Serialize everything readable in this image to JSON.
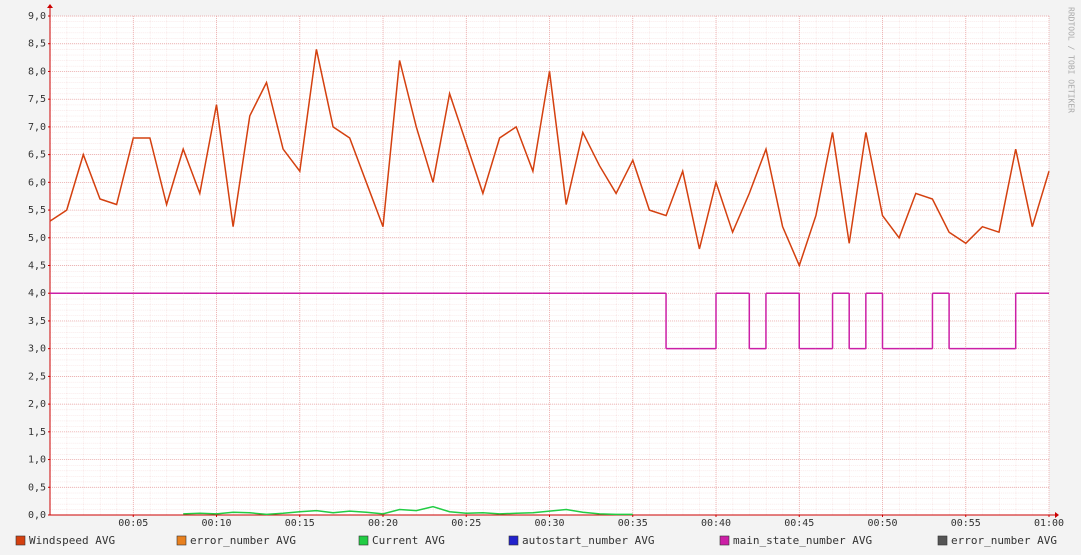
{
  "chart_data": {
    "type": "line",
    "watermark": "RRDTOOL / TOBI OETIKER",
    "x": [
      0,
      1,
      2,
      3,
      4,
      5,
      6,
      7,
      8,
      9,
      10,
      11,
      12,
      13,
      14,
      15,
      16,
      17,
      18,
      19,
      20,
      21,
      22,
      23,
      24,
      25,
      26,
      27,
      28,
      29,
      30,
      31,
      32,
      33,
      34,
      35,
      36,
      37,
      38,
      39,
      40,
      41,
      42,
      43,
      44,
      45,
      46,
      47,
      48,
      49,
      50,
      51,
      52,
      53,
      54,
      55,
      56,
      57,
      58,
      59,
      60
    ],
    "xlim": [
      0,
      60
    ],
    "xticks": [
      {
        "value": 5,
        "label": "00:05"
      },
      {
        "value": 10,
        "label": "00:10"
      },
      {
        "value": 15,
        "label": "00:15"
      },
      {
        "value": 20,
        "label": "00:20"
      },
      {
        "value": 25,
        "label": "00:25"
      },
      {
        "value": 30,
        "label": "00:30"
      },
      {
        "value": 35,
        "label": "00:35"
      },
      {
        "value": 40,
        "label": "00:40"
      },
      {
        "value": 45,
        "label": "00:45"
      },
      {
        "value": 50,
        "label": "00:50"
      },
      {
        "value": 55,
        "label": "00:55"
      },
      {
        "value": 60,
        "label": "01:00"
      }
    ],
    "ylim": [
      0,
      9
    ],
    "yticks": [
      {
        "value": 0,
        "label": "0,0"
      },
      {
        "value": 0.5,
        "label": "0,5"
      },
      {
        "value": 1,
        "label": "1,0"
      },
      {
        "value": 1.5,
        "label": "1,5"
      },
      {
        "value": 2,
        "label": "2,0"
      },
      {
        "value": 2.5,
        "label": "2,5"
      },
      {
        "value": 3,
        "label": "3,0"
      },
      {
        "value": 3.5,
        "label": "3,5"
      },
      {
        "value": 4,
        "label": "4,0"
      },
      {
        "value": 4.5,
        "label": "4,5"
      },
      {
        "value": 5,
        "label": "5,0"
      },
      {
        "value": 5.5,
        "label": "5,5"
      },
      {
        "value": 6,
        "label": "6,0"
      },
      {
        "value": 6.5,
        "label": "6,5"
      },
      {
        "value": 7,
        "label": "7,0"
      },
      {
        "value": 7.5,
        "label": "7,5"
      },
      {
        "value": 8,
        "label": "8,0"
      },
      {
        "value": 8.5,
        "label": "8,5"
      },
      {
        "value": 9,
        "label": "9,0"
      }
    ],
    "grid": true,
    "legend": "bottom",
    "series": [
      {
        "name": "Windspeed AVG",
        "color": "#d4400f",
        "values": [
          5.3,
          5.5,
          6.5,
          5.7,
          5.6,
          6.8,
          6.8,
          5.6,
          6.6,
          5.8,
          7.4,
          5.2,
          7.2,
          7.8,
          6.6,
          6.2,
          8.4,
          7.0,
          6.8,
          6.0,
          5.2,
          8.2,
          7.0,
          6.0,
          7.6,
          6.7,
          5.8,
          6.8,
          7.0,
          6.2,
          8.0,
          5.6,
          6.9,
          6.3,
          5.8,
          6.4,
          5.5,
          5.4,
          6.2,
          4.8,
          6.0,
          5.1,
          5.8,
          6.6,
          5.2,
          4.5,
          5.4,
          6.9,
          4.9,
          6.9,
          5.4,
          5.0,
          5.8,
          5.7,
          5.1,
          4.9,
          5.2,
          5.1,
          6.6,
          5.2,
          6.2
        ]
      },
      {
        "name": "error_number AVG",
        "color": "#e8801e",
        "values": [
          null,
          null,
          null,
          null,
          null,
          null,
          null,
          null,
          null,
          null,
          null,
          null,
          null,
          null,
          null,
          null,
          null,
          null,
          null,
          null,
          null,
          null,
          null,
          null,
          null,
          null,
          null,
          null,
          null,
          null,
          null,
          null,
          null,
          null,
          null,
          null,
          null,
          null,
          null,
          null,
          null,
          null,
          null,
          null,
          null,
          null,
          null,
          null,
          null,
          null,
          null,
          null,
          null,
          null,
          null,
          null,
          null,
          null,
          null,
          null,
          null
        ]
      },
      {
        "name": "Current AVG",
        "color": "#22cc44",
        "values": [
          null,
          null,
          null,
          null,
          null,
          null,
          null,
          null,
          0.02,
          0.03,
          0.02,
          0.05,
          0.04,
          0.01,
          0.03,
          0.06,
          0.08,
          0.04,
          0.07,
          0.05,
          0.02,
          0.1,
          0.08,
          0.15,
          0.06,
          0.03,
          0.04,
          0.02,
          0.03,
          0.04,
          0.07,
          0.1,
          0.05,
          0.02,
          0.01,
          0.01,
          null,
          null,
          null,
          null,
          null,
          null,
          null,
          null,
          null,
          null,
          null,
          null,
          null,
          null,
          null,
          null,
          null,
          null,
          null,
          null,
          null,
          null,
          null,
          null,
          null
        ]
      },
      {
        "name": "autostart_number AVG",
        "color": "#2222cc",
        "values": [
          null,
          null,
          null,
          null,
          null,
          null,
          null,
          null,
          null,
          null,
          null,
          null,
          null,
          null,
          null,
          null,
          null,
          null,
          null,
          null,
          null,
          null,
          null,
          null,
          null,
          null,
          null,
          null,
          null,
          null,
          null,
          null,
          null,
          null,
          null,
          null,
          null,
          null,
          null,
          null,
          null,
          null,
          null,
          null,
          null,
          null,
          null,
          null,
          null,
          null,
          null,
          null,
          null,
          null,
          null,
          null,
          null,
          null,
          null,
          null,
          null
        ]
      },
      {
        "name": "main_state_number AVG",
        "color": "#cc1fa6",
        "step": true,
        "values": [
          4,
          4,
          4,
          4,
          4,
          4,
          4,
          4,
          4,
          4,
          4,
          4,
          4,
          4,
          4,
          4,
          4,
          4,
          4,
          4,
          4,
          4,
          4,
          4,
          4,
          4,
          4,
          4,
          4,
          4,
          4,
          4,
          4,
          4,
          4,
          4,
          4,
          3,
          3,
          3,
          4,
          4,
          3,
          4,
          4,
          3,
          3,
          4,
          3,
          4,
          3,
          3,
          3,
          4,
          3,
          3,
          3,
          3,
          4,
          4,
          4
        ]
      },
      {
        "name": "error_number AVG",
        "color": "#555555",
        "values": [
          null,
          null,
          null,
          null,
          null,
          null,
          null,
          null,
          null,
          null,
          null,
          null,
          null,
          null,
          null,
          null,
          null,
          null,
          null,
          null,
          null,
          null,
          null,
          null,
          null,
          null,
          null,
          null,
          null,
          null,
          null,
          null,
          null,
          null,
          null,
          null,
          null,
          null,
          null,
          null,
          null,
          null,
          null,
          null,
          null,
          null,
          null,
          null,
          null,
          null,
          null,
          null,
          null,
          null,
          null,
          null,
          null,
          null,
          null,
          null,
          null
        ]
      }
    ]
  }
}
